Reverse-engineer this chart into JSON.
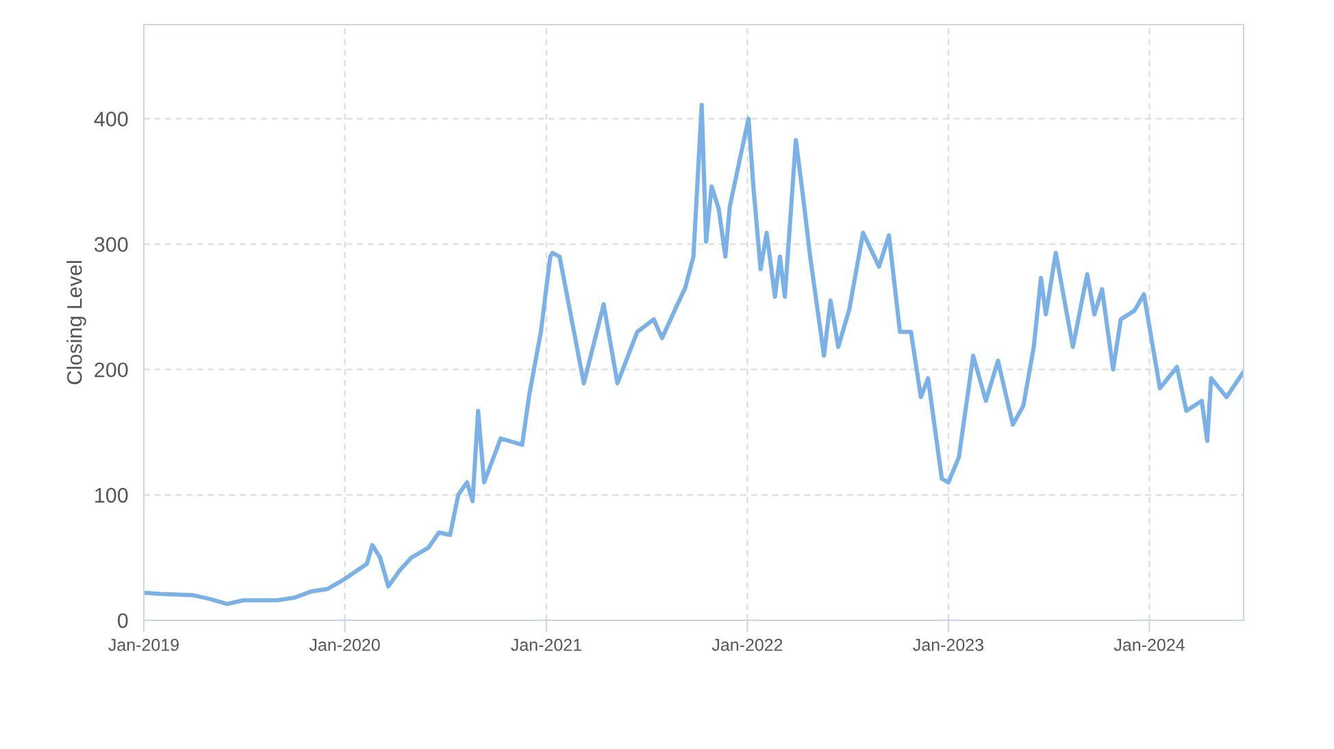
{
  "chart_data": {
    "type": "line",
    "ylabel": "Closing Level",
    "grid": true,
    "legend": false,
    "marker": "none",
    "line_style": "solid",
    "xlim": [
      "2019-01-01",
      "2024-06-20"
    ],
    "ylim": [
      0,
      475
    ],
    "yticks": [
      0,
      100,
      200,
      300,
      400
    ],
    "xticks": [
      {
        "value": "2019-01-01",
        "label": "Jan-2019"
      },
      {
        "value": "2020-01-01",
        "label": "Jan-2020"
      },
      {
        "value": "2021-01-01",
        "label": "Jan-2021"
      },
      {
        "value": "2022-01-01",
        "label": "Jan-2022"
      },
      {
        "value": "2023-01-01",
        "label": "Jan-2023"
      },
      {
        "value": "2024-01-01",
        "label": "Jan-2024"
      }
    ],
    "x": [
      "2019-01-01",
      "2019-02-01",
      "2019-04-01",
      "2019-05-01",
      "2019-06-01",
      "2019-07-01",
      "2019-09-01",
      "2019-10-01",
      "2019-11-01",
      "2019-12-01",
      "2020-01-01",
      "2020-02-10",
      "2020-02-20",
      "2020-03-05",
      "2020-03-20",
      "2020-04-10",
      "2020-05-01",
      "2020-06-01",
      "2020-06-20",
      "2020-07-10",
      "2020-07-25",
      "2020-08-10",
      "2020-08-20",
      "2020-08-30",
      "2020-09-10",
      "2020-10-10",
      "2020-11-18",
      "2020-12-01",
      "2020-12-22",
      "2021-01-08",
      "2021-01-12",
      "2021-01-25",
      "2021-03-10",
      "2021-04-15",
      "2021-05-10",
      "2021-06-15",
      "2021-07-15",
      "2021-07-30",
      "2021-08-25",
      "2021-09-10",
      "2021-09-25",
      "2021-10-10",
      "2021-10-18",
      "2021-10-28",
      "2021-11-10",
      "2021-11-22",
      "2021-11-30",
      "2022-01-03",
      "2022-01-12",
      "2022-01-25",
      "2022-02-05",
      "2022-02-20",
      "2022-03-01",
      "2022-03-10",
      "2022-03-30",
      "2022-04-12",
      "2022-04-25",
      "2022-05-20",
      "2022-06-01",
      "2022-06-15",
      "2022-07-05",
      "2022-07-30",
      "2022-08-28",
      "2022-09-15",
      "2022-10-05",
      "2022-10-25",
      "2022-11-12",
      "2022-11-25",
      "2022-12-20",
      "2023-01-01",
      "2023-01-20",
      "2023-02-15",
      "2023-03-10",
      "2023-04-01",
      "2023-04-28",
      "2023-05-17",
      "2023-06-05",
      "2023-06-18",
      "2023-06-27",
      "2023-07-15",
      "2023-08-15",
      "2023-09-10",
      "2023-09-23",
      "2023-10-07",
      "2023-10-27",
      "2023-11-10",
      "2023-12-05",
      "2023-12-22",
      "2024-01-20",
      "2024-02-20",
      "2024-03-08",
      "2024-04-05",
      "2024-04-15",
      "2024-04-22",
      "2024-05-20",
      "2024-06-18"
    ],
    "series": [
      {
        "color": "#7ab2e8",
        "values": [
          22,
          21,
          20,
          17,
          13,
          16,
          16,
          18,
          23,
          25,
          33,
          45,
          60,
          50,
          27,
          40,
          50,
          58,
          70,
          68,
          100,
          110,
          95,
          167,
          110,
          145,
          140,
          180,
          230,
          290,
          293,
          290,
          189,
          252,
          189,
          230,
          240,
          225,
          250,
          265,
          290,
          411,
          302,
          346,
          328,
          290,
          330,
          400,
          345,
          280,
          309,
          258,
          290,
          258,
          383,
          338,
          290,
          211,
          255,
          218,
          248,
          309,
          282,
          307,
          230,
          230,
          178,
          193,
          113,
          110,
          130,
          211,
          175,
          207,
          156,
          171,
          218,
          273,
          244,
          293,
          218,
          276,
          244,
          264,
          200,
          240,
          247,
          260,
          185,
          202,
          167,
          175,
          143,
          193,
          178,
          197
        ]
      }
    ]
  }
}
